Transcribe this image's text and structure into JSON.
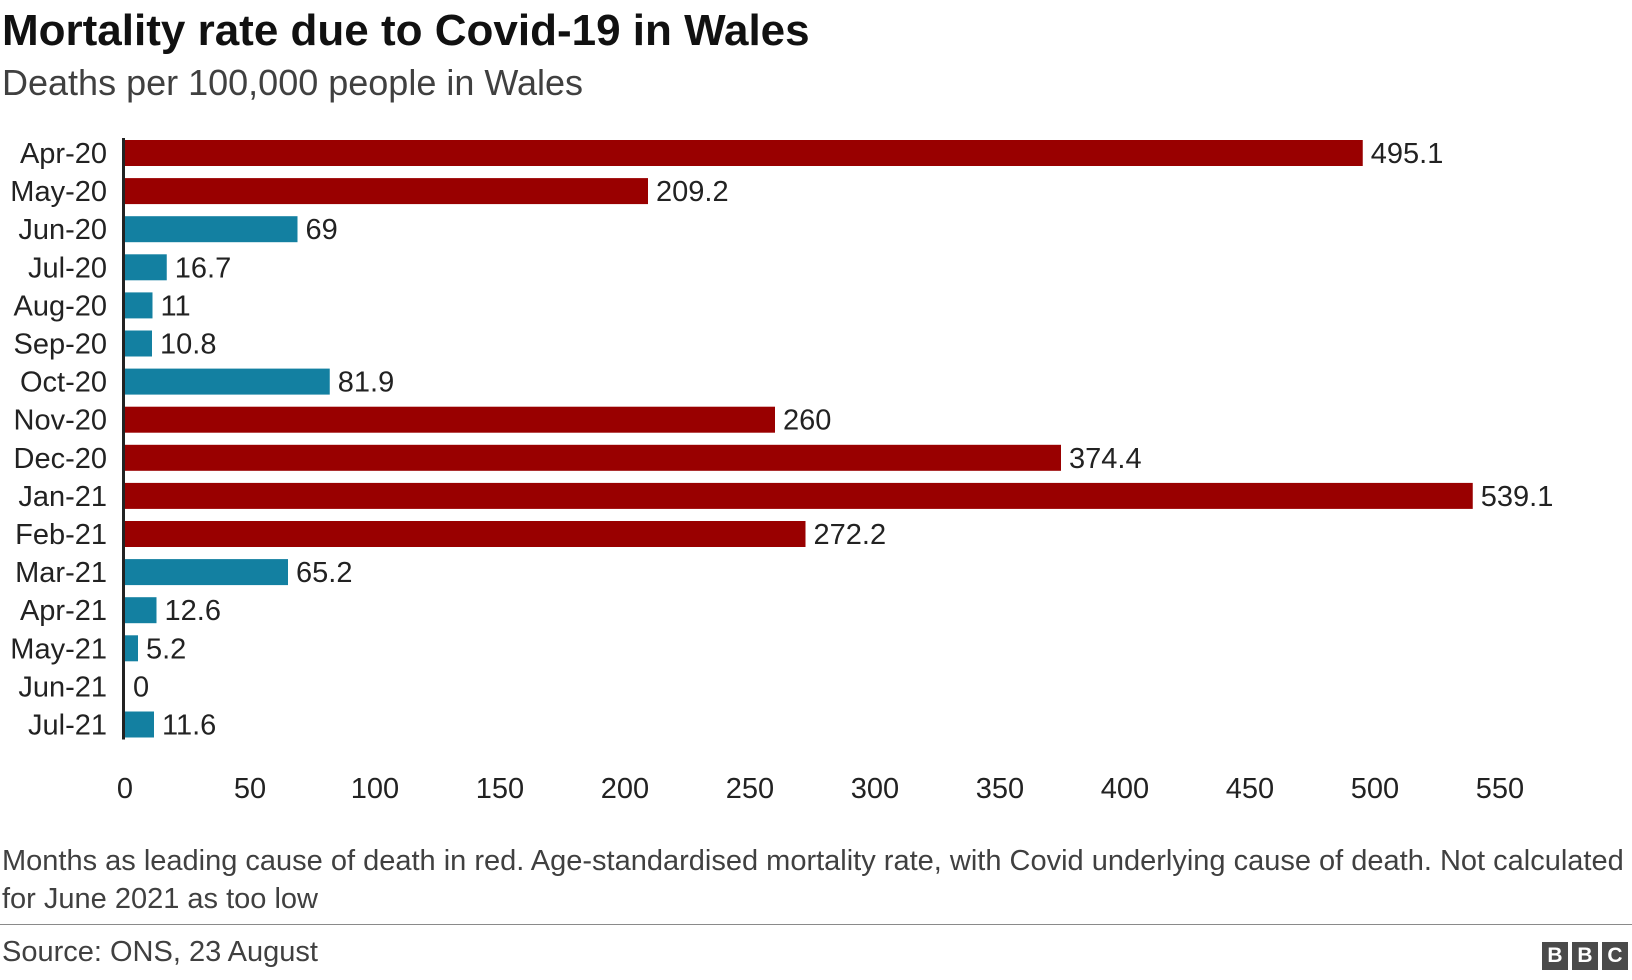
{
  "header": {
    "title": "Mortality rate due to Covid-19 in Wales",
    "subtitle": "Deaths per 100,000 people in Wales"
  },
  "colors": {
    "leading_cause": "#990000",
    "other": "#1380A1",
    "axis": "#222222",
    "text": "#222222"
  },
  "chart_data": {
    "type": "bar",
    "orientation": "horizontal",
    "title": "Mortality rate due to Covid-19 in Wales",
    "subtitle": "Deaths per 100,000 people in Wales",
    "categories": [
      "Apr-20",
      "May-20",
      "Jun-20",
      "Jul-20",
      "Aug-20",
      "Sep-20",
      "Oct-20",
      "Nov-20",
      "Dec-20",
      "Jan-21",
      "Feb-21",
      "Mar-21",
      "Apr-21",
      "May-21",
      "Jun-21",
      "Jul-21"
    ],
    "values": [
      495.1,
      209.2,
      69,
      16.7,
      11,
      10.8,
      81.9,
      260,
      374.4,
      539.1,
      272.2,
      65.2,
      12.6,
      5.2,
      0,
      11.6
    ],
    "value_labels": [
      "495.1",
      "209.2",
      "69",
      "16.7",
      "11",
      "10.8",
      "81.9",
      "260",
      "374.4",
      "539.1",
      "272.2",
      "65.2",
      "12.6",
      "5.2",
      "0",
      "11.6"
    ],
    "leading_cause": [
      true,
      true,
      false,
      false,
      false,
      false,
      false,
      true,
      true,
      true,
      true,
      false,
      false,
      false,
      false,
      false
    ],
    "xlim": [
      0,
      550
    ],
    "xticks": [
      0,
      50,
      100,
      150,
      200,
      250,
      300,
      350,
      400,
      450,
      500,
      550
    ],
    "xlabel": "",
    "ylabel": "",
    "grid": false
  },
  "footer": {
    "note": "Months as leading cause of death in red. Age-standardised mortality rate, with Covid underlying cause of death. Not calculated for June 2021 as too low",
    "source": "Source: ONS, 23 August",
    "logo_letters": [
      "B",
      "B",
      "C"
    ]
  }
}
